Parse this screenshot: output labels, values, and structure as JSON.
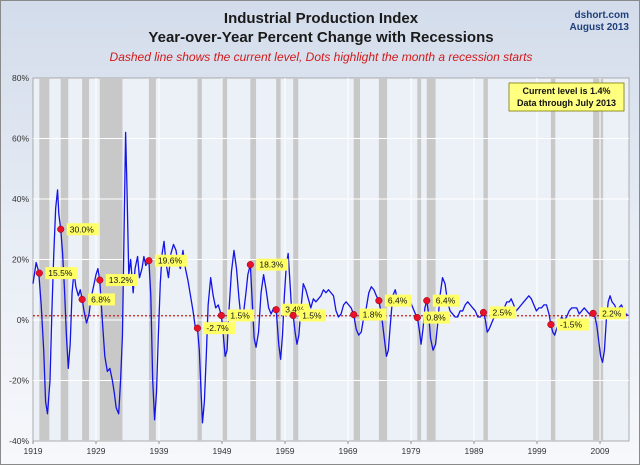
{
  "header": {
    "title_line1": "Industrial Production Index",
    "title_line2": "Year-over-Year Percent Change with Recessions",
    "subtitle": "Dashed line shows the current level, Dots highlight the month a recession starts",
    "source": "dshort.com",
    "date": "August 2013"
  },
  "infobox": {
    "line1": "Current level is 1.4%",
    "line2": "Data through July 2013"
  },
  "colors": {
    "line": "#1414e6",
    "recession": "#c8c8c8",
    "dot": "#e8102a",
    "current_line": "#c0201a",
    "label_bg": "#ffff66",
    "grid": "#ffffff"
  },
  "chart_data": {
    "type": "line",
    "title": "Industrial Production Index",
    "subtitle": "Year-over-Year Percent Change with Recessions",
    "x_ticks": [
      1919,
      1929,
      1939,
      1949,
      1959,
      1969,
      1979,
      1989,
      1999,
      2009
    ],
    "y_ticks": [
      "-40%",
      "-20%",
      "0%",
      "20%",
      "40%",
      "60%",
      "80%"
    ],
    "y_tick_values": [
      -40,
      -20,
      0,
      20,
      40,
      60,
      80
    ],
    "xlim": [
      1919,
      2013.6
    ],
    "ylim": [
      -40,
      80
    ],
    "grid": true,
    "current_level": 1.4,
    "recessions": [
      [
        1920.0,
        1921.6
      ],
      [
        1923.4,
        1924.6
      ],
      [
        1926.8,
        1927.9
      ],
      [
        1929.6,
        1933.2
      ],
      [
        1937.4,
        1938.5
      ],
      [
        1945.1,
        1945.8
      ],
      [
        1948.9,
        1949.8
      ],
      [
        1953.5,
        1954.4
      ],
      [
        1957.6,
        1958.3
      ],
      [
        1960.3,
        1961.1
      ],
      [
        1969.9,
        1970.9
      ],
      [
        1973.9,
        1975.2
      ],
      [
        1980.0,
        1980.6
      ],
      [
        1981.5,
        1982.9
      ],
      [
        1990.5,
        1991.2
      ],
      [
        2001.2,
        2001.9
      ],
      [
        2007.9,
        2009.5
      ]
    ],
    "recession_start_points": [
      {
        "x": 1920.0,
        "y": 15.5,
        "label": "15.5%"
      },
      {
        "x": 1923.4,
        "y": 30.0,
        "label": "30.0%"
      },
      {
        "x": 1926.8,
        "y": 6.8,
        "label": "6.8%"
      },
      {
        "x": 1929.6,
        "y": 13.2,
        "label": "13.2%"
      },
      {
        "x": 1937.4,
        "y": 19.6,
        "label": "19.6%"
      },
      {
        "x": 1945.1,
        "y": -2.7,
        "label": "-2.7%"
      },
      {
        "x": 1948.9,
        "y": 1.5,
        "label": "1.5%"
      },
      {
        "x": 1953.5,
        "y": 18.3,
        "label": "18.3%"
      },
      {
        "x": 1957.6,
        "y": 3.4,
        "label": "3.4%"
      },
      {
        "x": 1960.3,
        "y": 1.5,
        "label": "1.5%"
      },
      {
        "x": 1969.9,
        "y": 1.8,
        "label": "1.8%"
      },
      {
        "x": 1973.9,
        "y": 6.4,
        "label": "6.4%"
      },
      {
        "x": 1980.0,
        "y": 0.8,
        "label": "0.8%"
      },
      {
        "x": 1981.5,
        "y": 6.4,
        "label": "6.4%"
      },
      {
        "x": 1990.5,
        "y": 2.5,
        "label": "2.5%"
      },
      {
        "x": 2001.2,
        "y": -1.5,
        "label": "-1.5%"
      },
      {
        "x": 2007.9,
        "y": 2.2,
        "label": "2.2%"
      }
    ],
    "series": [
      {
        "values_xy": [
          [
            1919.0,
            12
          ],
          [
            1919.5,
            19
          ],
          [
            1919.9,
            16
          ],
          [
            1920.3,
            5
          ],
          [
            1920.7,
            -10
          ],
          [
            1921.0,
            -27
          ],
          [
            1921.3,
            -31
          ],
          [
            1921.7,
            -20
          ],
          [
            1922.0,
            3
          ],
          [
            1922.3,
            22
          ],
          [
            1922.6,
            37
          ],
          [
            1922.9,
            43
          ],
          [
            1923.1,
            35
          ],
          [
            1923.4,
            30
          ],
          [
            1923.7,
            22
          ],
          [
            1924.0,
            10
          ],
          [
            1924.3,
            -5
          ],
          [
            1924.6,
            -16
          ],
          [
            1924.9,
            -8
          ],
          [
            1925.2,
            9
          ],
          [
            1925.5,
            16
          ],
          [
            1925.8,
            11
          ],
          [
            1926.2,
            8
          ],
          [
            1926.5,
            10
          ],
          [
            1926.8,
            7
          ],
          [
            1927.1,
            3
          ],
          [
            1927.5,
            -1
          ],
          [
            1927.9,
            2
          ],
          [
            1928.2,
            7
          ],
          [
            1928.6,
            11
          ],
          [
            1929.0,
            15
          ],
          [
            1929.3,
            17
          ],
          [
            1929.6,
            13
          ],
          [
            1930.0,
            0
          ],
          [
            1930.4,
            -12
          ],
          [
            1930.8,
            -17
          ],
          [
            1931.2,
            -16
          ],
          [
            1931.6,
            -20
          ],
          [
            1931.9,
            -24
          ],
          [
            1932.2,
            -29
          ],
          [
            1932.6,
            -31
          ],
          [
            1932.9,
            -20
          ],
          [
            1933.2,
            -5
          ],
          [
            1933.5,
            35
          ],
          [
            1933.7,
            62
          ],
          [
            1933.9,
            45
          ],
          [
            1934.2,
            15
          ],
          [
            1934.5,
            20
          ],
          [
            1934.9,
            9
          ],
          [
            1935.2,
            17
          ],
          [
            1935.6,
            21
          ],
          [
            1935.9,
            14
          ],
          [
            1936.3,
            17
          ],
          [
            1936.6,
            21
          ],
          [
            1936.9,
            18
          ],
          [
            1937.2,
            19
          ],
          [
            1937.4,
            19.6
          ],
          [
            1937.7,
            8
          ],
          [
            1938.0,
            -20
          ],
          [
            1938.3,
            -33
          ],
          [
            1938.6,
            -24
          ],
          [
            1938.9,
            -5
          ],
          [
            1939.2,
            12
          ],
          [
            1939.5,
            22
          ],
          [
            1939.8,
            26
          ],
          [
            1940.1,
            19
          ],
          [
            1940.5,
            14
          ],
          [
            1940.9,
            22
          ],
          [
            1941.3,
            25
          ],
          [
            1941.7,
            23
          ],
          [
            1942.0,
            19
          ],
          [
            1942.4,
            17
          ],
          [
            1942.8,
            23
          ],
          [
            1943.2,
            17
          ],
          [
            1943.6,
            13
          ],
          [
            1944.0,
            8
          ],
          [
            1944.4,
            3
          ],
          [
            1944.8,
            -3
          ],
          [
            1945.1,
            -2.7
          ],
          [
            1945.4,
            -10
          ],
          [
            1945.7,
            -25
          ],
          [
            1945.9,
            -34
          ],
          [
            1946.2,
            -27
          ],
          [
            1946.5,
            -12
          ],
          [
            1946.8,
            5
          ],
          [
            1947.2,
            14
          ],
          [
            1947.6,
            8
          ],
          [
            1948.0,
            4
          ],
          [
            1948.4,
            5
          ],
          [
            1948.9,
            1.5
          ],
          [
            1949.2,
            -5
          ],
          [
            1949.5,
            -12
          ],
          [
            1949.8,
            -10
          ],
          [
            1950.1,
            3
          ],
          [
            1950.5,
            16
          ],
          [
            1950.9,
            23
          ],
          [
            1951.3,
            17
          ],
          [
            1951.7,
            7
          ],
          [
            1952.0,
            1
          ],
          [
            1952.4,
            2
          ],
          [
            1952.8,
            9
          ],
          [
            1953.1,
            15
          ],
          [
            1953.5,
            18.3
          ],
          [
            1953.8,
            6
          ],
          [
            1954.1,
            -6
          ],
          [
            1954.4,
            -9
          ],
          [
            1954.8,
            -4
          ],
          [
            1955.2,
            9
          ],
          [
            1955.6,
            15
          ],
          [
            1956.0,
            10
          ],
          [
            1956.4,
            4
          ],
          [
            1956.8,
            2
          ],
          [
            1957.2,
            4
          ],
          [
            1957.6,
            3.4
          ],
          [
            1958.0,
            -8
          ],
          [
            1958.3,
            -13
          ],
          [
            1958.6,
            -5
          ],
          [
            1958.9,
            8
          ],
          [
            1959.2,
            18
          ],
          [
            1959.5,
            22
          ],
          [
            1959.8,
            12
          ],
          [
            1960.0,
            5
          ],
          [
            1960.3,
            1.5
          ],
          [
            1960.6,
            -4
          ],
          [
            1960.9,
            -8
          ],
          [
            1961.2,
            -5
          ],
          [
            1961.5,
            3
          ],
          [
            1961.9,
            12
          ],
          [
            1962.3,
            10
          ],
          [
            1962.7,
            7
          ],
          [
            1963.1,
            4
          ],
          [
            1963.5,
            7
          ],
          [
            1963.9,
            6
          ],
          [
            1964.3,
            7
          ],
          [
            1964.7,
            8
          ],
          [
            1965.1,
            10
          ],
          [
            1965.5,
            9
          ],
          [
            1965.9,
            10
          ],
          [
            1966.3,
            9
          ],
          [
            1966.7,
            8
          ],
          [
            1967.1,
            3
          ],
          [
            1967.5,
            1
          ],
          [
            1967.9,
            2
          ],
          [
            1968.3,
            5
          ],
          [
            1968.7,
            6
          ],
          [
            1969.1,
            5
          ],
          [
            1969.5,
            4
          ],
          [
            1969.9,
            1.8
          ],
          [
            1970.3,
            -3
          ],
          [
            1970.7,
            -5
          ],
          [
            1971.1,
            -4
          ],
          [
            1971.5,
            1
          ],
          [
            1971.9,
            4
          ],
          [
            1972.3,
            9
          ],
          [
            1972.7,
            11
          ],
          [
            1973.1,
            10
          ],
          [
            1973.5,
            8
          ],
          [
            1973.9,
            6.4
          ],
          [
            1974.3,
            2
          ],
          [
            1974.7,
            -5
          ],
          [
            1975.1,
            -12
          ],
          [
            1975.4,
            -10
          ],
          [
            1975.7,
            -2
          ],
          [
            1976.1,
            8
          ],
          [
            1976.5,
            10
          ],
          [
            1976.9,
            6
          ],
          [
            1977.3,
            7
          ],
          [
            1977.7,
            5
          ],
          [
            1978.1,
            6
          ],
          [
            1978.5,
            7
          ],
          [
            1978.9,
            6
          ],
          [
            1979.3,
            4
          ],
          [
            1979.7,
            2
          ],
          [
            1980.0,
            0.8
          ],
          [
            1980.3,
            -3
          ],
          [
            1980.6,
            -8
          ],
          [
            1980.9,
            -3
          ],
          [
            1981.2,
            4
          ],
          [
            1981.5,
            6.4
          ],
          [
            1981.8,
            2
          ],
          [
            1982.1,
            -6
          ],
          [
            1982.5,
            -10
          ],
          [
            1982.9,
            -8
          ],
          [
            1983.2,
            -2
          ],
          [
            1983.6,
            8
          ],
          [
            1984.0,
            14
          ],
          [
            1984.4,
            12
          ],
          [
            1984.8,
            6
          ],
          [
            1985.2,
            3
          ],
          [
            1985.6,
            2
          ],
          [
            1986.0,
            1
          ],
          [
            1986.4,
            1
          ],
          [
            1986.8,
            3
          ],
          [
            1987.2,
            3
          ],
          [
            1987.6,
            5
          ],
          [
            1988.0,
            6
          ],
          [
            1988.4,
            5
          ],
          [
            1988.8,
            4
          ],
          [
            1989.2,
            3
          ],
          [
            1989.6,
            1
          ],
          [
            1990.0,
            1
          ],
          [
            1990.5,
            2.5
          ],
          [
            1990.8,
            0
          ],
          [
            1991.1,
            -4
          ],
          [
            1991.4,
            -3
          ],
          [
            1991.8,
            -1
          ],
          [
            1992.2,
            1
          ],
          [
            1992.6,
            3
          ],
          [
            1993.0,
            3
          ],
          [
            1993.4,
            4
          ],
          [
            1993.8,
            4
          ],
          [
            1994.2,
            6
          ],
          [
            1994.6,
            6
          ],
          [
            1994.9,
            7
          ],
          [
            1995.3,
            5
          ],
          [
            1995.7,
            3
          ],
          [
            1996.1,
            4
          ],
          [
            1996.5,
            5
          ],
          [
            1996.9,
            6
          ],
          [
            1997.3,
            7
          ],
          [
            1997.7,
            8
          ],
          [
            1998.1,
            7
          ],
          [
            1998.5,
            5
          ],
          [
            1998.9,
            3
          ],
          [
            1999.3,
            4
          ],
          [
            1999.7,
            4
          ],
          [
            2000.1,
            5
          ],
          [
            2000.5,
            5
          ],
          [
            2000.9,
            2
          ],
          [
            2001.2,
            -1.5
          ],
          [
            2001.5,
            -4
          ],
          [
            2001.8,
            -5
          ],
          [
            2002.1,
            -3
          ],
          [
            2002.5,
            -1
          ],
          [
            2002.9,
            1
          ],
          [
            2003.3,
            0
          ],
          [
            2003.7,
            1
          ],
          [
            2004.1,
            3
          ],
          [
            2004.5,
            4
          ],
          [
            2004.9,
            4
          ],
          [
            2005.3,
            4
          ],
          [
            2005.7,
            2
          ],
          [
            2006.1,
            3
          ],
          [
            2006.5,
            4
          ],
          [
            2006.9,
            3
          ],
          [
            2007.3,
            2
          ],
          [
            2007.6,
            2
          ],
          [
            2007.9,
            2.2
          ],
          [
            2008.2,
            1
          ],
          [
            2008.5,
            -2
          ],
          [
            2008.8,
            -7
          ],
          [
            2009.1,
            -12
          ],
          [
            2009.4,
            -14
          ],
          [
            2009.7,
            -10
          ],
          [
            2010.0,
            0
          ],
          [
            2010.3,
            6
          ],
          [
            2010.6,
            8
          ],
          [
            2010.9,
            6
          ],
          [
            2011.3,
            5
          ],
          [
            2011.7,
            3
          ],
          [
            2012.0,
            4
          ],
          [
            2012.4,
            5
          ],
          [
            2012.8,
            3
          ],
          [
            2013.1,
            2
          ],
          [
            2013.5,
            1.4
          ]
        ]
      }
    ]
  }
}
